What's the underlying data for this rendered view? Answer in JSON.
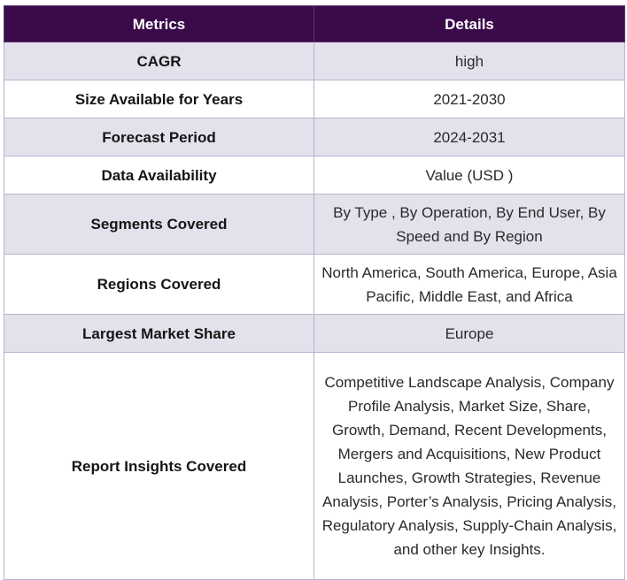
{
  "table": {
    "headers": [
      "Metrics",
      "Details"
    ],
    "rows": [
      {
        "metric": "CAGR",
        "detail": "high"
      },
      {
        "metric": "Size Available for Years",
        "detail": "2021-2030"
      },
      {
        "metric": "Forecast Period",
        "detail": "2024-2031"
      },
      {
        "metric": "Data Availability",
        "detail": "Value (USD )"
      },
      {
        "metric": "Segments Covered",
        "detail": "By Type , By Operation, By End User, By Speed and By Region"
      },
      {
        "metric": "Regions Covered",
        "detail": "North America, South America, Europe, Asia Pacific, Middle East, and Africa"
      },
      {
        "metric": "Largest Market Share",
        "detail": "Europe"
      },
      {
        "metric": "Report Insights Covered",
        "detail": "Competitive Landscape Analysis, Company Profile Analysis, Market Size, Share, Growth, Demand, Recent Developments, Mergers and Acquisitions, New Product Launches, Growth Strategies, Revenue Analysis, Porter’s Analysis, Pricing Analysis, Regulatory Analysis, Supply-Chain Analysis, and other key Insights."
      }
    ]
  },
  "colors": {
    "header_bg": "#3a0a4a",
    "shaded_row_bg": "#e4e1ec",
    "border": "#b9b2cf"
  }
}
